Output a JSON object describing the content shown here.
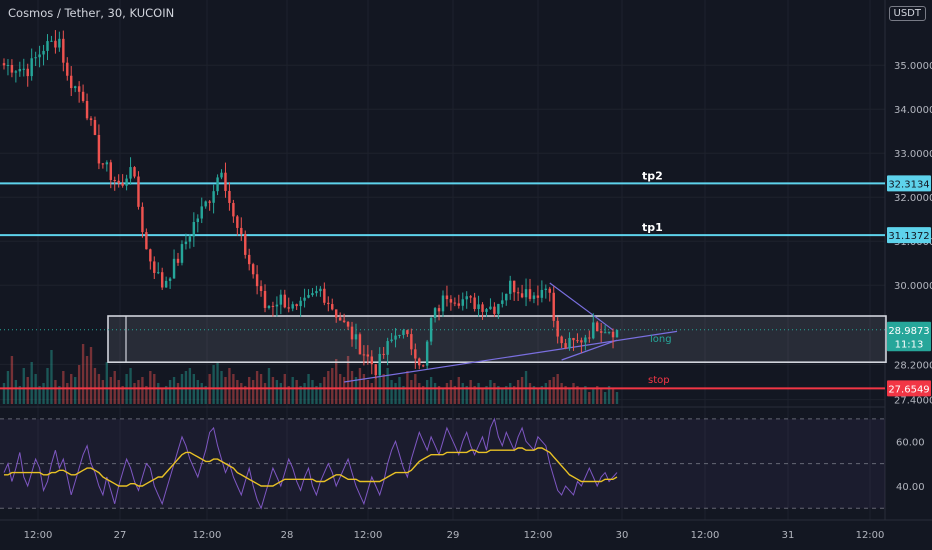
{
  "header": {
    "symbol_title": "Cosmos / Tether, 30, KUCOIN",
    "currency": "USDT"
  },
  "colors": {
    "background": "#131722",
    "up_candle": "#26a69a",
    "down_candle": "#ef5350",
    "target_line": "#5ed3ec",
    "stop_line": "#f23645",
    "rsi_line": "#7e57c2",
    "rsi_ma": "#e8c125",
    "box": "#d1d4dc"
  },
  "chart_data": [
    {
      "type": "candlestick",
      "ylim": [
        27.3,
        36.3
      ],
      "y_ticks": [
        "35.0000",
        "34.0000",
        "33.0000",
        "32.0000",
        "31.0000",
        "30.0000",
        "28.2000",
        "27.4000"
      ],
      "x_ticks": [
        "12:00",
        "27",
        "12:00",
        "28",
        "12:00",
        "29",
        "12:00",
        "30",
        "12:00",
        "31",
        "12:00"
      ],
      "price_labels": [
        {
          "text": "32.3134",
          "value": 32.3134,
          "color": "#5ed3ec"
        },
        {
          "text": "31.1372",
          "value": 31.1372,
          "color": "#5ed3ec"
        },
        {
          "text": "28.9873",
          "value": 28.9873,
          "color": "#26a69a"
        },
        {
          "text": "11:13",
          "value": 28.68,
          "color": "#26a69a"
        },
        {
          "text": "27.6549",
          "value": 27.6549,
          "color": "#f23645"
        }
      ],
      "annotations": [
        {
          "text": "tp2",
          "value": 32.3134
        },
        {
          "text": "tp1",
          "value": 31.1372
        },
        {
          "text": "long",
          "value": 28.8
        },
        {
          "text": "stop",
          "value": 27.75
        }
      ],
      "levels": [
        {
          "name": "tp2",
          "value": 32.3134
        },
        {
          "name": "tp1",
          "value": 31.1372
        },
        {
          "name": "stop",
          "value": 27.6549
        }
      ],
      "zone": {
        "top": 29.3,
        "bottom": 28.25
      },
      "current_price": 28.9873,
      "price_path": [
        {
          "t": 0,
          "p": 35.0
        },
        {
          "t": 6,
          "p": 34.9
        },
        {
          "t": 10,
          "p": 35.4
        },
        {
          "t": 14,
          "p": 35.6
        },
        {
          "t": 16,
          "p": 34.7
        },
        {
          "t": 20,
          "p": 34.3
        },
        {
          "t": 24,
          "p": 32.9
        },
        {
          "t": 27,
          "p": 32.5
        },
        {
          "t": 30,
          "p": 32.2
        },
        {
          "t": 32,
          "p": 32.8
        },
        {
          "t": 36,
          "p": 30.8
        },
        {
          "t": 40,
          "p": 30.0
        },
        {
          "t": 44,
          "p": 30.6
        },
        {
          "t": 48,
          "p": 31.4
        },
        {
          "t": 52,
          "p": 32.0
        },
        {
          "t": 55,
          "p": 32.7
        },
        {
          "t": 58,
          "p": 31.5
        },
        {
          "t": 62,
          "p": 30.5
        },
        {
          "t": 66,
          "p": 29.5
        },
        {
          "t": 70,
          "p": 29.7
        },
        {
          "t": 74,
          "p": 29.4
        },
        {
          "t": 80,
          "p": 29.9
        },
        {
          "t": 86,
          "p": 29.1
        },
        {
          "t": 90,
          "p": 28.6
        },
        {
          "t": 94,
          "p": 28.1
        },
        {
          "t": 97,
          "p": 28.6
        },
        {
          "t": 100,
          "p": 29.0
        },
        {
          "t": 104,
          "p": 28.5
        },
        {
          "t": 106,
          "p": 28.1
        },
        {
          "t": 108,
          "p": 29.2
        },
        {
          "t": 112,
          "p": 29.8
        },
        {
          "t": 118,
          "p": 29.6
        },
        {
          "t": 124,
          "p": 29.5
        },
        {
          "t": 128,
          "p": 30.0
        },
        {
          "t": 134,
          "p": 29.8
        },
        {
          "t": 138,
          "p": 30.0
        },
        {
          "t": 139,
          "p": 29.1
        },
        {
          "t": 141,
          "p": 28.6
        },
        {
          "t": 145,
          "p": 28.7
        },
        {
          "t": 150,
          "p": 29.1
        },
        {
          "t": 155,
          "p": 28.95
        }
      ],
      "candle_count": 156,
      "volume_range": [
        0.0,
        1.0
      ],
      "volume_levels": [
        0.35,
        0.55,
        0.8,
        0.4,
        0.3,
        0.6,
        0.45,
        0.7,
        0.5,
        0.3,
        0.35,
        0.6,
        0.9,
        0.4,
        0.3,
        0.55,
        0.35,
        0.5,
        0.45,
        0.65,
        1.0,
        0.8,
        0.95,
        0.6,
        0.5,
        0.4,
        0.7,
        0.45,
        0.55,
        0.4,
        0.3,
        0.5,
        0.6,
        0.35,
        0.4,
        0.45,
        0.3,
        0.55,
        0.5,
        0.35,
        0.25,
        0.3,
        0.4,
        0.45,
        0.35,
        0.5,
        0.55,
        0.6,
        0.5,
        0.4,
        0.35,
        0.3,
        0.5,
        0.65,
        0.7,
        0.55,
        0.45,
        0.6,
        0.5,
        0.4,
        0.35,
        0.3,
        0.45,
        0.4,
        0.55,
        0.5,
        0.35,
        0.6,
        0.45,
        0.4,
        0.35,
        0.5,
        0.3,
        0.45,
        0.4,
        0.3,
        0.35,
        0.5,
        0.4,
        0.3,
        0.35,
        0.45,
        0.55,
        0.6,
        0.75,
        0.5,
        0.45,
        0.8,
        0.55,
        0.45,
        0.6,
        0.5,
        0.4,
        0.35,
        0.45,
        0.55,
        0.5,
        0.6,
        0.4,
        0.35,
        0.45,
        0.3,
        0.55,
        0.4,
        0.5,
        0.35,
        0.3,
        0.4,
        0.45,
        0.35,
        0.3,
        0.25,
        0.35,
        0.4,
        0.3,
        0.45,
        0.35,
        0.3,
        0.4,
        0.3,
        0.35,
        0.25,
        0.3,
        0.4,
        0.35,
        0.3,
        0.25,
        0.3,
        0.35,
        0.3,
        0.4,
        0.45,
        0.55,
        0.35,
        0.3,
        0.25,
        0.3,
        0.35,
        0.4,
        0.45,
        0.5,
        0.35,
        0.3,
        0.25,
        0.35,
        0.3,
        0.25,
        0.3,
        0.2,
        0.25,
        0.3,
        0.25,
        0.2,
        0.3,
        0.25,
        0.2
      ]
    },
    {
      "type": "line",
      "ylim": [
        27,
        74
      ],
      "y_ticks": [
        "60.00",
        "40.00"
      ],
      "band": {
        "upper": 70,
        "middle": 50,
        "lower": 30
      },
      "series": [
        {
          "values": [
            46,
            50,
            42,
            48,
            55,
            44,
            40,
            46,
            52,
            48,
            38,
            42,
            50,
            56,
            48,
            52,
            44,
            36,
            42,
            48,
            54,
            58,
            50,
            46,
            40,
            36,
            44,
            38,
            32,
            40,
            46,
            52,
            48,
            42,
            38,
            44,
            50,
            48,
            40,
            36,
            32,
            38,
            44,
            50,
            56,
            62,
            58,
            52,
            48,
            44,
            50,
            56,
            64,
            66,
            58,
            52,
            46,
            50,
            44,
            40,
            36,
            42,
            48,
            40,
            34,
            30,
            36,
            42,
            48,
            44,
            40,
            46,
            52,
            48,
            42,
            38,
            44,
            48,
            40,
            36,
            42,
            46,
            50,
            46,
            40,
            44,
            48,
            52,
            46,
            40,
            36,
            32,
            38,
            44,
            40,
            36,
            42,
            50,
            56,
            60,
            54,
            48,
            44,
            52,
            58,
            64,
            60,
            56,
            62,
            58,
            54,
            60,
            66,
            62,
            58,
            54,
            60,
            64,
            58,
            54,
            58,
            62,
            56,
            66,
            70,
            62,
            58,
            64,
            60,
            56,
            62,
            66,
            60,
            58,
            56,
            62,
            60,
            58,
            50,
            44,
            38,
            36,
            40,
            38,
            36,
            42,
            40,
            44,
            48,
            44,
            40,
            44,
            46,
            42,
            44,
            46
          ]
        },
        {
          "values": [
            45,
            45,
            46,
            46,
            46,
            46,
            46,
            46,
            46,
            46,
            45,
            45,
            46,
            46,
            47,
            47,
            46,
            45,
            45,
            46,
            47,
            48,
            48,
            47,
            46,
            44,
            43,
            42,
            41,
            40,
            40,
            40,
            41,
            41,
            40,
            40,
            41,
            42,
            43,
            44,
            44,
            46,
            48,
            50,
            52,
            54,
            55,
            55,
            54,
            53,
            52,
            51,
            51,
            52,
            52,
            51,
            50,
            49,
            48,
            46,
            45,
            44,
            43,
            42,
            41,
            40,
            40,
            40,
            40,
            41,
            42,
            43,
            43,
            43,
            43,
            43,
            43,
            43,
            43,
            42,
            42,
            42,
            43,
            44,
            45,
            45,
            44,
            43,
            43,
            43,
            42,
            42,
            42,
            42,
            42,
            42,
            43,
            44,
            45,
            46,
            46,
            46,
            46,
            47,
            49,
            51,
            52,
            53,
            54,
            54,
            54,
            54,
            55,
            55,
            55,
            55,
            55,
            55,
            56,
            56,
            55,
            55,
            55,
            56,
            56,
            56,
            56,
            56,
            56,
            56,
            57,
            57,
            56,
            56,
            56,
            57,
            57,
            56,
            55,
            53,
            51,
            49,
            47,
            45,
            44,
            43,
            42,
            42,
            42,
            42,
            42,
            42,
            43,
            43,
            43,
            44
          ]
        }
      ]
    }
  ]
}
